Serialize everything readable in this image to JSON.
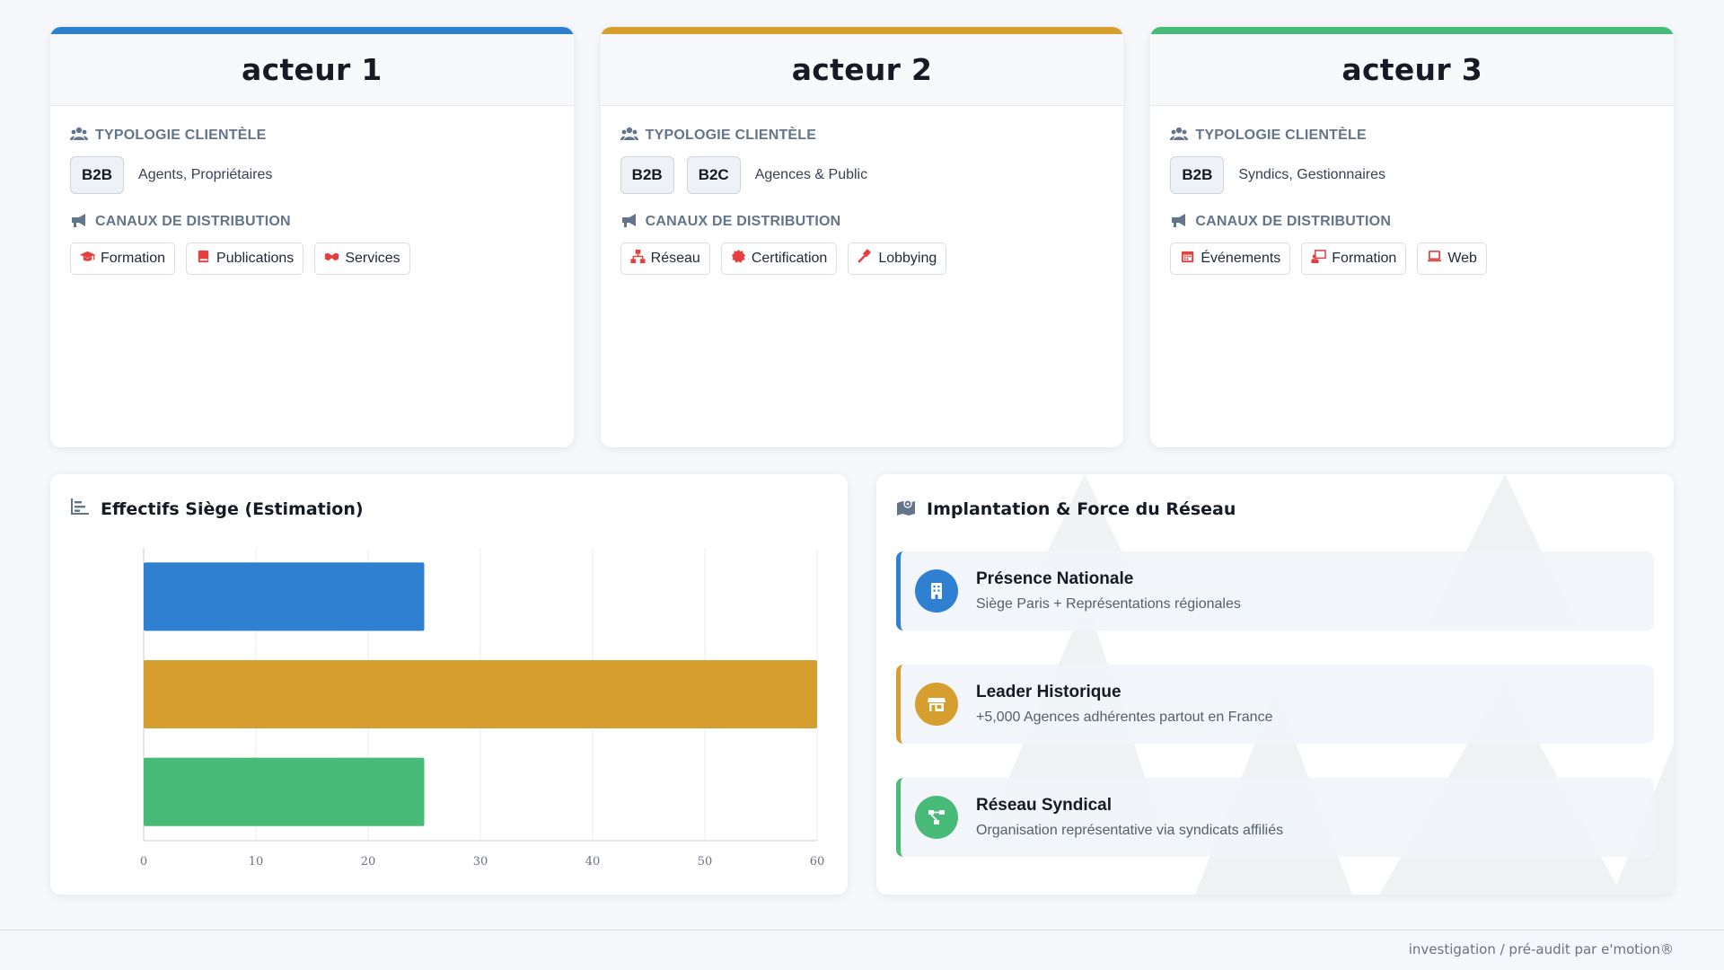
{
  "colors": {
    "actor1": "#2f80d1",
    "actor2": "#d69e2e",
    "actor3": "#48bb78",
    "icon_red": "#e53e3e",
    "label_gray": "#64748b"
  },
  "actors": [
    {
      "title": "acteur 1",
      "typology_label": "TYPOLOGIE CLIENTÈLE",
      "badges": [
        "B2B"
      ],
      "typology_desc": "Agents, Propriétaires",
      "channels_label": "CANAUX DE DISTRIBUTION",
      "channels": [
        {
          "label": "Formation",
          "icon": "graduation-cap-icon"
        },
        {
          "label": "Publications",
          "icon": "book-icon"
        },
        {
          "label": "Services",
          "icon": "handshake-icon"
        }
      ]
    },
    {
      "title": "acteur 2",
      "typology_label": "TYPOLOGIE CLIENTÈLE",
      "badges": [
        "B2B",
        "B2C"
      ],
      "typology_desc": "Agences & Public",
      "channels_label": "CANAUX DE DISTRIBUTION",
      "channels": [
        {
          "label": "Réseau",
          "icon": "network-icon"
        },
        {
          "label": "Certification",
          "icon": "certificate-icon"
        },
        {
          "label": "Lobbying",
          "icon": "gavel-icon"
        }
      ]
    },
    {
      "title": "acteur 3",
      "typology_label": "TYPOLOGIE CLIENTÈLE",
      "badges": [
        "B2B"
      ],
      "typology_desc": "Syndics, Gestionnaires",
      "channels_label": "CANAUX DE DISTRIBUTION",
      "channels": [
        {
          "label": "Événements",
          "icon": "calendar-icon"
        },
        {
          "label": "Formation",
          "icon": "chalkboard-teacher-icon"
        },
        {
          "label": "Web",
          "icon": "laptop-icon"
        }
      ]
    }
  ],
  "chart_panel": {
    "title": "Effectifs Siège (Estimation)",
    "icon": "bar-chart-icon"
  },
  "chart_data": {
    "type": "bar",
    "orientation": "horizontal",
    "categories": [
      "",
      "",
      ""
    ],
    "values": [
      25,
      60,
      25
    ],
    "colors": [
      "#2f80d1",
      "#d69e2e",
      "#48bb78"
    ],
    "xlim": [
      0,
      60
    ],
    "xticks": [
      0,
      10,
      20,
      30,
      40,
      50,
      60
    ],
    "grid": true,
    "legend": "none",
    "title": "",
    "xlabel": "",
    "ylabel": ""
  },
  "network_panel": {
    "title": "Implantation & Force du Réseau",
    "icon": "map-marked-icon",
    "items": [
      {
        "title": "Présence Nationale",
        "desc": "Siège Paris + Représentations régionales",
        "color": "#2f80d1",
        "icon": "building-icon"
      },
      {
        "title": "Leader Historique",
        "desc": "+5,000 Agences adhérentes partout en France",
        "color": "#d69e2e",
        "icon": "store-icon"
      },
      {
        "title": "Réseau Syndical",
        "desc": "Organisation représentative via syndicats affiliés",
        "color": "#48bb78",
        "icon": "project-diagram-icon"
      }
    ]
  },
  "footer": {
    "text": "investigation / pré-audit par e'motion®"
  }
}
